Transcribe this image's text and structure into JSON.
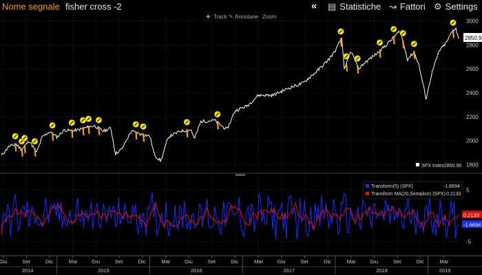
{
  "header": {
    "name_label": "Nome segnale",
    "signal_name": "fisher cross -2",
    "buttons": {
      "back": "«",
      "stats": "Statistiche",
      "factors": "Fattori",
      "settings": "Settings"
    },
    "colors": {
      "name_label": "#f39c12",
      "signal_name": "#e6e6e6"
    }
  },
  "toolbar": {
    "track": "Track",
    "annotate": "Annotare",
    "zoom": "Zoom"
  },
  "price_panel": {
    "y_ticks": [
      "3000",
      "2800",
      "2600",
      "2400",
      "2200",
      "2000",
      "1800"
    ],
    "y_tick_values": [
      3000,
      2800,
      2600,
      2400,
      2200,
      2000,
      1800
    ],
    "ylim": [
      1750,
      3050
    ],
    "last_value": "2850.96",
    "legend": "SPX Index",
    "legend_value": "2850.96",
    "line_color": "#ffffff",
    "signal_color": "#f0a020",
    "marker_color": "#f4e21a"
  },
  "indicator_panel": {
    "y_ticks": [
      "5",
      "0",
      "-5"
    ],
    "y_tick_values": [
      5,
      0,
      -5
    ],
    "ylim": [
      -7.5,
      7.5
    ],
    "legend": [
      {
        "label": "Transform(5) (SPX)",
        "value": "-1.6694",
        "color": "#1a2fff"
      },
      {
        "label": "Transform MA(20,Semplice) (SPX)",
        "value": "0.2133",
        "color": "#e01010"
      }
    ],
    "right_tags": [
      {
        "value": "0.2133",
        "color": "#d41010",
        "y": 0.2133
      },
      {
        "value": "-1.6694",
        "color": "#2030e0",
        "y": -1.6694
      }
    ]
  },
  "x_axis": {
    "start": 2014.4,
    "end": 2019.33,
    "months": [
      {
        "label": "Giu",
        "t": 2014.42
      },
      {
        "label": "Set",
        "t": 2014.67
      },
      {
        "label": "Dic",
        "t": 2014.92
      },
      {
        "label": "Mar",
        "t": 2015.17
      },
      {
        "label": "Giu",
        "t": 2015.42
      },
      {
        "label": "Set",
        "t": 2015.67
      },
      {
        "label": "Dic",
        "t": 2015.92
      },
      {
        "label": "Mar",
        "t": 2016.17
      },
      {
        "label": "Giu",
        "t": 2016.42
      },
      {
        "label": "Set",
        "t": 2016.67
      },
      {
        "label": "Dic",
        "t": 2016.92
      },
      {
        "label": "Mar",
        "t": 2017.17
      },
      {
        "label": "Giu",
        "t": 2017.42
      },
      {
        "label": "Set",
        "t": 2017.67
      },
      {
        "label": "Dic",
        "t": 2017.92
      },
      {
        "label": "Mar",
        "t": 2018.17
      },
      {
        "label": "Giu",
        "t": 2018.42
      },
      {
        "label": "Set",
        "t": 2018.67
      },
      {
        "label": "Dic",
        "t": 2018.92
      },
      {
        "label": "Mar",
        "t": 2019.17
      }
    ],
    "years": [
      {
        "label": "2014",
        "t": 2014.68
      },
      {
        "label": "2015",
        "t": 2015.5
      },
      {
        "label": "2016",
        "t": 2016.5
      },
      {
        "label": "2017",
        "t": 2017.5
      },
      {
        "label": "2018",
        "t": 2018.5
      },
      {
        "label": "2019",
        "t": 2019.18
      }
    ],
    "year_dividers": [
      2015.0,
      2016.0,
      2017.0,
      2018.0,
      2019.0
    ]
  },
  "chart_data": {
    "type": "line",
    "series": [
      {
        "name": "SPX Index",
        "points": [
          [
            2014.4,
            1875
          ],
          [
            2014.48,
            1950
          ],
          [
            2014.56,
            1970
          ],
          [
            2014.62,
            1925
          ],
          [
            2014.7,
            2000
          ],
          [
            2014.78,
            1900
          ],
          [
            2014.84,
            2030
          ],
          [
            2014.92,
            2075
          ],
          [
            2015.0,
            2030
          ],
          [
            2015.08,
            2090
          ],
          [
            2015.17,
            2080
          ],
          [
            2015.3,
            2105
          ],
          [
            2015.4,
            2125
          ],
          [
            2015.5,
            2080
          ],
          [
            2015.58,
            2105
          ],
          [
            2015.63,
            1890
          ],
          [
            2015.7,
            1930
          ],
          [
            2015.8,
            2080
          ],
          [
            2015.92,
            2050
          ],
          [
            2016.0,
            2040
          ],
          [
            2016.05,
            1880
          ],
          [
            2016.12,
            1830
          ],
          [
            2016.2,
            2030
          ],
          [
            2016.33,
            2080
          ],
          [
            2016.45,
            2090
          ],
          [
            2016.48,
            2010
          ],
          [
            2016.55,
            2160
          ],
          [
            2016.7,
            2170
          ],
          [
            2016.83,
            2090
          ],
          [
            2016.92,
            2250
          ],
          [
            2017.05,
            2290
          ],
          [
            2017.17,
            2380
          ],
          [
            2017.33,
            2380
          ],
          [
            2017.5,
            2440
          ],
          [
            2017.65,
            2480
          ],
          [
            2017.8,
            2580
          ],
          [
            2017.92,
            2670
          ],
          [
            2018.0,
            2750
          ],
          [
            2018.07,
            2860
          ],
          [
            2018.1,
            2590
          ],
          [
            2018.17,
            2750
          ],
          [
            2018.25,
            2600
          ],
          [
            2018.33,
            2660
          ],
          [
            2018.45,
            2730
          ],
          [
            2018.55,
            2800
          ],
          [
            2018.7,
            2920
          ],
          [
            2018.78,
            2680
          ],
          [
            2018.85,
            2740
          ],
          [
            2018.9,
            2640
          ],
          [
            2018.98,
            2350
          ],
          [
            2019.04,
            2560
          ],
          [
            2019.12,
            2750
          ],
          [
            2019.2,
            2820
          ],
          [
            2019.25,
            2900
          ],
          [
            2019.3,
            2945
          ],
          [
            2019.33,
            2850.96
          ]
        ]
      }
    ],
    "signals": [
      2014.55,
      2014.62,
      2014.65,
      2014.76,
      2014.95,
      2015.16,
      2015.28,
      2015.34,
      2015.45,
      2015.85,
      2015.93,
      2016.4,
      2016.73,
      2018.06,
      2018.12,
      2018.24,
      2018.48,
      2018.63,
      2018.73,
      2018.85,
      2019.27
    ]
  }
}
